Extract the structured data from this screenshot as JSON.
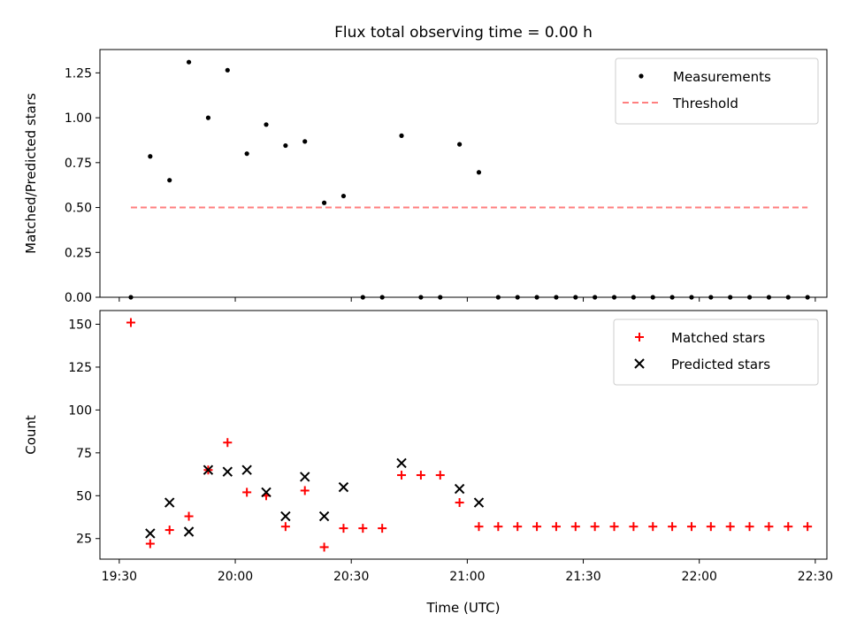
{
  "chart_data": [
    {
      "type": "scatter",
      "title": "Flux total observing time = 0.00 h",
      "xlabel": "",
      "ylabel": "Matched/Predicted stars",
      "xlim": [
        "19:25",
        "22:33"
      ],
      "ylim": [
        0,
        1.38
      ],
      "yticks": [
        "0.00",
        "0.25",
        "0.50",
        "0.75",
        "1.00",
        "1.25"
      ],
      "xticks": [
        "19:30",
        "20:00",
        "20:30",
        "21:00",
        "21:30",
        "22:00",
        "22:30"
      ],
      "show_xtick_labels": false,
      "legend": "top-right",
      "series": [
        {
          "name": "Measurements",
          "marker": "dot",
          "color": "#000000",
          "points": [
            [
              "19:33",
              0.0
            ],
            [
              "19:38",
              0.785
            ],
            [
              "19:43",
              0.652
            ],
            [
              "19:48",
              1.31
            ],
            [
              "19:53",
              1.0
            ],
            [
              "19:58",
              1.265
            ],
            [
              "20:03",
              0.8
            ],
            [
              "20:08",
              0.962
            ],
            [
              "20:13",
              0.845
            ],
            [
              "20:18",
              0.868
            ],
            [
              "20:23",
              0.526
            ],
            [
              "20:28",
              0.564
            ],
            [
              "20:33",
              0.0
            ],
            [
              "20:38",
              0.0
            ],
            [
              "20:43",
              0.9
            ],
            [
              "20:48",
              0.0
            ],
            [
              "20:53",
              0.0
            ],
            [
              "20:58",
              0.852
            ],
            [
              "21:03",
              0.696
            ],
            [
              "21:08",
              0.0
            ],
            [
              "21:13",
              0.0
            ],
            [
              "21:18",
              0.0
            ],
            [
              "21:23",
              0.0
            ],
            [
              "21:28",
              0.0
            ],
            [
              "21:33",
              0.0
            ],
            [
              "21:38",
              0.0
            ],
            [
              "21:43",
              0.0
            ],
            [
              "21:48",
              0.0
            ],
            [
              "21:53",
              0.0
            ],
            [
              "21:58",
              0.0
            ],
            [
              "22:03",
              0.0
            ],
            [
              "22:08",
              0.0
            ],
            [
              "22:13",
              0.0
            ],
            [
              "22:18",
              0.0
            ],
            [
              "22:23",
              0.0
            ],
            [
              "22:28",
              0.0
            ]
          ]
        },
        {
          "name": "Threshold",
          "marker": "dashed-line",
          "color": "#ff7f7f",
          "points": [
            [
              "19:33",
              0.5
            ],
            [
              "22:28",
              0.5
            ]
          ]
        }
      ]
    },
    {
      "type": "scatter",
      "title": "",
      "xlabel": "Time (UTC)",
      "ylabel": "Count",
      "xlim": [
        "19:25",
        "22:33"
      ],
      "ylim": [
        13,
        158
      ],
      "yticks": [
        "25",
        "50",
        "75",
        "100",
        "125",
        "150"
      ],
      "xticks": [
        "19:30",
        "20:00",
        "20:30",
        "21:00",
        "21:30",
        "22:00",
        "22:30"
      ],
      "show_xtick_labels": true,
      "legend": "top-right",
      "series": [
        {
          "name": "Matched stars",
          "marker": "plus",
          "color": "#ff0000",
          "points": [
            [
              "19:33",
              151
            ],
            [
              "19:38",
              22
            ],
            [
              "19:43",
              30
            ],
            [
              "19:48",
              38
            ],
            [
              "19:53",
              65
            ],
            [
              "19:58",
              81
            ],
            [
              "20:03",
              52
            ],
            [
              "20:08",
              50
            ],
            [
              "20:13",
              32
            ],
            [
              "20:18",
              53
            ],
            [
              "20:23",
              20
            ],
            [
              "20:28",
              31
            ],
            [
              "20:33",
              31
            ],
            [
              "20:38",
              31
            ],
            [
              "20:43",
              62
            ],
            [
              "20:48",
              62
            ],
            [
              "20:53",
              62
            ],
            [
              "20:58",
              46
            ],
            [
              "21:03",
              32
            ],
            [
              "21:08",
              32
            ],
            [
              "21:13",
              32
            ],
            [
              "21:18",
              32
            ],
            [
              "21:23",
              32
            ],
            [
              "21:28",
              32
            ],
            [
              "21:33",
              32
            ],
            [
              "21:38",
              32
            ],
            [
              "21:43",
              32
            ],
            [
              "21:48",
              32
            ],
            [
              "21:53",
              32
            ],
            [
              "21:58",
              32
            ],
            [
              "22:03",
              32
            ],
            [
              "22:08",
              32
            ],
            [
              "22:13",
              32
            ],
            [
              "22:18",
              32
            ],
            [
              "22:23",
              32
            ],
            [
              "22:28",
              32
            ]
          ]
        },
        {
          "name": "Predicted stars",
          "marker": "x",
          "color": "#000000",
          "points": [
            [
              "19:38",
              28
            ],
            [
              "19:43",
              46
            ],
            [
              "19:48",
              29
            ],
            [
              "19:53",
              65
            ],
            [
              "19:58",
              64
            ],
            [
              "20:03",
              65
            ],
            [
              "20:08",
              52
            ],
            [
              "20:13",
              38
            ],
            [
              "20:18",
              61
            ],
            [
              "20:23",
              38
            ],
            [
              "20:28",
              55
            ],
            [
              "20:43",
              69
            ],
            [
              "20:58",
              54
            ],
            [
              "21:03",
              46
            ]
          ]
        }
      ]
    }
  ]
}
